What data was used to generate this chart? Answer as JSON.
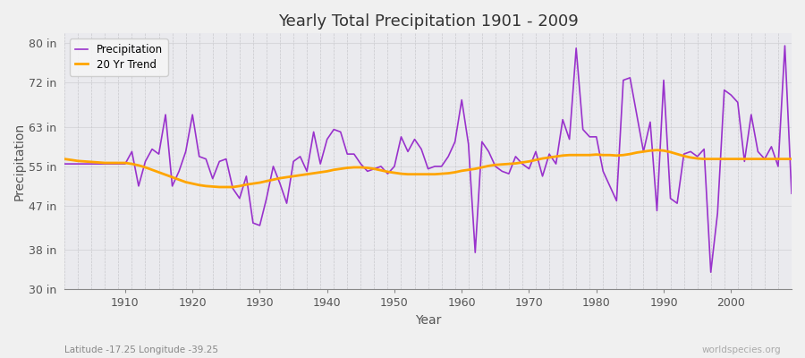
{
  "title": "Yearly Total Precipitation 1901 - 2009",
  "xlabel": "Year",
  "ylabel": "Precipitation",
  "subtitle": "Latitude -17.25 Longitude -39.25",
  "watermark": "worldspecies.org",
  "ylim": [
    30,
    82
  ],
  "yticks": [
    30,
    38,
    47,
    55,
    63,
    72,
    80
  ],
  "ytick_labels": [
    "30 in",
    "38 in",
    "47 in",
    "55 in",
    "63 in",
    "72 in",
    "80 in"
  ],
  "xlim": [
    1901,
    2009
  ],
  "xticks": [
    1910,
    1920,
    1930,
    1940,
    1950,
    1960,
    1970,
    1980,
    1990,
    2000
  ],
  "precip_color": "#9932CC",
  "trend_color": "#FFA500",
  "bg_color": "#F0F0F0",
  "plot_bg_color": "#EAEAEE",
  "grid_color_h": "#D8D8DC",
  "grid_color_v": "#C8C8CC",
  "years": [
    1901,
    1902,
    1903,
    1904,
    1905,
    1906,
    1907,
    1908,
    1909,
    1910,
    1911,
    1912,
    1913,
    1914,
    1915,
    1916,
    1917,
    1918,
    1919,
    1920,
    1921,
    1922,
    1923,
    1924,
    1925,
    1926,
    1927,
    1928,
    1929,
    1930,
    1931,
    1932,
    1933,
    1934,
    1935,
    1936,
    1937,
    1938,
    1939,
    1940,
    1941,
    1942,
    1943,
    1944,
    1945,
    1946,
    1947,
    1948,
    1949,
    1950,
    1951,
    1952,
    1953,
    1954,
    1955,
    1956,
    1957,
    1958,
    1959,
    1960,
    1961,
    1962,
    1963,
    1964,
    1965,
    1966,
    1967,
    1968,
    1969,
    1970,
    1971,
    1972,
    1973,
    1974,
    1975,
    1976,
    1977,
    1978,
    1979,
    1980,
    1981,
    1982,
    1983,
    1984,
    1985,
    1986,
    1987,
    1988,
    1989,
    1990,
    1991,
    1992,
    1993,
    1994,
    1995,
    1996,
    1997,
    1998,
    1999,
    2000,
    2001,
    2002,
    2003,
    2004,
    2005,
    2006,
    2007,
    2008,
    2009
  ],
  "precip": [
    55.5,
    55.5,
    55.5,
    55.5,
    55.5,
    55.5,
    55.5,
    55.5,
    55.5,
    55.5,
    58.0,
    51.0,
    56.0,
    58.5,
    57.5,
    65.5,
    51.0,
    54.0,
    58.0,
    65.5,
    57.0,
    56.5,
    52.5,
    56.0,
    56.5,
    50.5,
    48.5,
    53.0,
    43.5,
    43.0,
    48.5,
    55.0,
    51.5,
    47.5,
    56.0,
    57.0,
    54.0,
    62.0,
    55.5,
    60.5,
    62.5,
    62.0,
    57.5,
    57.5,
    55.5,
    54.0,
    54.5,
    55.0,
    53.5,
    55.0,
    61.0,
    58.0,
    60.5,
    58.5,
    54.5,
    55.0,
    55.0,
    57.0,
    60.0,
    68.5,
    59.5,
    37.5,
    60.0,
    58.0,
    55.0,
    54.0,
    53.5,
    57.0,
    55.5,
    54.5,
    58.0,
    53.0,
    57.5,
    55.5,
    64.5,
    60.5,
    79.0,
    62.5,
    61.0,
    61.0,
    54.0,
    51.0,
    48.0,
    72.5,
    73.0,
    65.5,
    58.0,
    64.0,
    46.0,
    72.5,
    48.5,
    47.5,
    57.5,
    58.0,
    57.0,
    58.5,
    33.5,
    45.5,
    70.5,
    69.5,
    68.0,
    56.0,
    65.5,
    58.0,
    56.5,
    59.0,
    55.0,
    79.5,
    49.5
  ],
  "trend": [
    56.5,
    56.3,
    56.1,
    56.0,
    55.9,
    55.8,
    55.7,
    55.7,
    55.7,
    55.7,
    55.5,
    55.2,
    54.8,
    54.3,
    53.8,
    53.3,
    52.8,
    52.3,
    51.8,
    51.5,
    51.2,
    51.0,
    50.9,
    50.8,
    50.8,
    50.8,
    51.0,
    51.3,
    51.5,
    51.7,
    52.0,
    52.3,
    52.6,
    52.8,
    53.0,
    53.2,
    53.4,
    53.6,
    53.8,
    54.0,
    54.3,
    54.5,
    54.7,
    54.8,
    54.8,
    54.7,
    54.5,
    54.2,
    53.9,
    53.7,
    53.5,
    53.4,
    53.4,
    53.4,
    53.4,
    53.4,
    53.5,
    53.6,
    53.8,
    54.1,
    54.3,
    54.5,
    54.8,
    55.1,
    55.3,
    55.4,
    55.5,
    55.6,
    55.8,
    56.0,
    56.3,
    56.6,
    56.8,
    57.0,
    57.2,
    57.3,
    57.3,
    57.3,
    57.3,
    57.4,
    57.3,
    57.3,
    57.2,
    57.3,
    57.5,
    57.8,
    58.0,
    58.2,
    58.3,
    58.2,
    57.9,
    57.5,
    57.1,
    56.8,
    56.6,
    56.5,
    56.5,
    56.5,
    56.5,
    56.5,
    56.5,
    56.5,
    56.5,
    56.5,
    56.5,
    56.5,
    56.5,
    56.5,
    56.5
  ]
}
